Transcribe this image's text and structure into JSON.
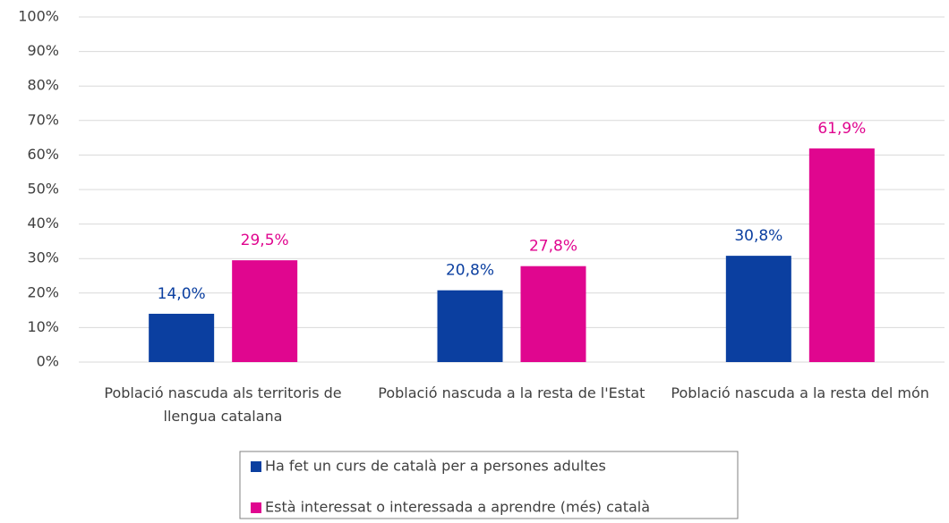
{
  "chart_data": {
    "type": "bar",
    "categories": [
      "Població nascuda als territoris de llengua catalana",
      "Població nascuda a la resta de l'Estat",
      "Població nascuda a la resta del món"
    ],
    "series": [
      {
        "name": "Ha fet un curs de català per a persones adultes",
        "color": "#0b3fa0",
        "values": [
          14.0,
          20.8,
          30.8
        ],
        "value_labels": [
          "14,0%",
          "20,8%",
          "30,8%"
        ]
      },
      {
        "name": "Està interessat o interessada a aprendre (més) català",
        "color": "#e0068f",
        "values": [
          29.5,
          27.8,
          61.9
        ],
        "value_labels": [
          "29,5%",
          "27,8%",
          "61,9%"
        ]
      }
    ],
    "ylim": [
      0,
      100
    ],
    "yticks": [
      {
        "value": 0,
        "label": "0%"
      },
      {
        "value": 10,
        "label": "10%"
      },
      {
        "value": 20,
        "label": "20%"
      },
      {
        "value": 30,
        "label": "30%"
      },
      {
        "value": 40,
        "label": "40%"
      },
      {
        "value": 50,
        "label": "50%"
      },
      {
        "value": 60,
        "label": "60%"
      },
      {
        "value": 70,
        "label": "70%"
      },
      {
        "value": 80,
        "label": "80%"
      },
      {
        "value": 90,
        "label": "90%"
      },
      {
        "value": 100,
        "label": "100%"
      }
    ],
    "grid": true,
    "legend": "bottom"
  }
}
